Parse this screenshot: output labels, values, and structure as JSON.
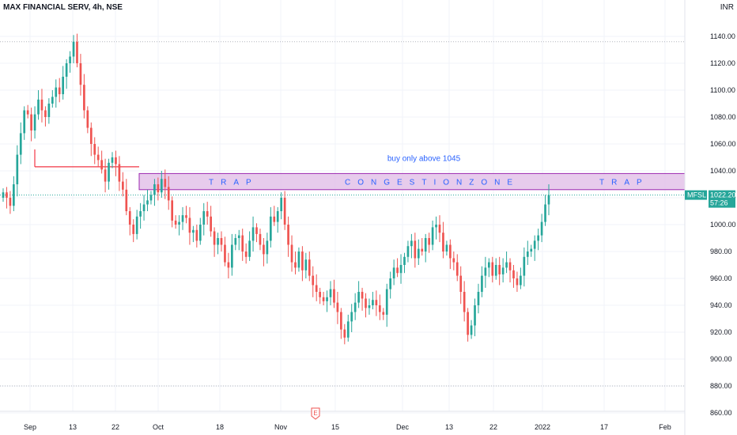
{
  "header": {
    "symbol_line": "MAX FINANCIAL SERV, 4h, NSE",
    "currency": "INR"
  },
  "chart_data": {
    "type": "candlestick",
    "title": "MAX FINANCIAL SERV, 4h, NSE",
    "ylim": [
      855,
      1165
    ],
    "y_ticks": [
      860,
      880,
      900,
      920,
      940,
      960,
      980,
      1000,
      1020,
      1040,
      1060,
      1080,
      1100,
      1120,
      1140
    ],
    "x_ticks": [
      "Sep",
      "13",
      "Sep 22",
      "Oct",
      "18",
      "Nov",
      "15",
      "Dec",
      "13",
      "22",
      "2022",
      "17",
      "Feb"
    ],
    "price_tag": {
      "symbol": "MFSL",
      "value": "1022.20",
      "countdown": "57:26"
    },
    "annotations": {
      "buy_note": "buy only above 1045",
      "zone_label_left": "TRAP",
      "zone_label_center": "CONGESTIONZONE",
      "zone_label_right": "TRAP",
      "zone_low": 1026,
      "zone_high": 1038,
      "support_line": 1043,
      "earnings_marker": "E"
    },
    "colors": {
      "up": "#26a69a",
      "down": "#ef5350",
      "zone_fill": "#e1bee7",
      "zone_border": "#9c27b0",
      "support": "#f23645",
      "note": "#2962ff"
    },
    "closes": [
      1024,
      1020,
      1014,
      1030,
      1052,
      1068,
      1085,
      1082,
      1070,
      1082,
      1093,
      1085,
      1080,
      1090,
      1095,
      1102,
      1097,
      1110,
      1120,
      1125,
      1136,
      1120,
      1104,
      1085,
      1072,
      1060,
      1052,
      1048,
      1041,
      1032,
      1046,
      1050,
      1045,
      1032,
      1026,
      1010,
      1000,
      993,
      1006,
      1010,
      1015,
      1018,
      1022,
      1030,
      1024,
      1034,
      1028,
      1018,
      1003,
      1000,
      1002,
      1007,
      1005,
      994,
      996,
      988,
      1000,
      1010,
      1006,
      995,
      985,
      990,
      985,
      972,
      968,
      985,
      990,
      992,
      980,
      976,
      988,
      998,
      993,
      985,
      978,
      988,
      1006,
      1002,
      1010,
      1020,
      1000,
      985,
      972,
      968,
      980,
      966,
      974,
      962,
      955,
      950,
      946,
      943,
      946,
      952,
      942,
      935,
      922,
      916,
      928,
      935,
      942,
      950,
      945,
      938,
      940,
      944,
      940,
      935,
      933,
      952,
      960,
      968,
      964,
      970,
      976,
      984,
      988,
      975,
      982,
      980,
      990,
      985,
      998,
      1000,
      994,
      980,
      985,
      975,
      972,
      962,
      950,
      935,
      918,
      925,
      940,
      950,
      962,
      968,
      972,
      962,
      970,
      963,
      968,
      972,
      966,
      960,
      955,
      962,
      976,
      980,
      982,
      988,
      992,
      1002,
      1015,
      1022
    ]
  }
}
